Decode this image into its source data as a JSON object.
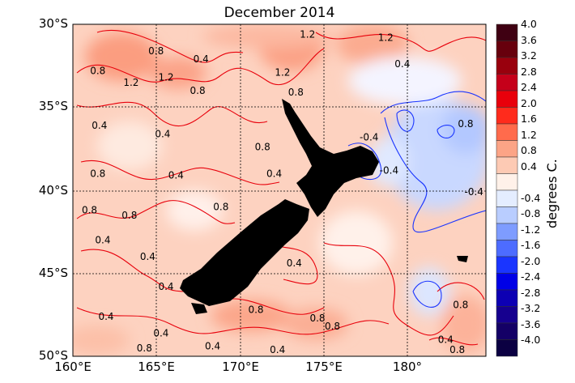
{
  "title": "December 2014",
  "lat_labels": [
    "30°S",
    "35°S",
    "40°S",
    "45°S",
    "50°S"
  ],
  "lon_labels": [
    "160°E",
    "165°E",
    "170°E",
    "175°E",
    "180°"
  ],
  "colorbar": {
    "label": "degrees C.",
    "tick_labels": [
      "4.0",
      "3.6",
      "3.2",
      "2.8",
      "2.4",
      "2.0",
      "1.6",
      "1.2",
      "0.8",
      "0.4",
      "-0.4",
      "-0.8",
      "-1.2",
      "-1.6",
      "-2.0",
      "-2.4",
      "-2.8",
      "-3.2",
      "-3.6",
      "-4.0"
    ],
    "colors": [
      "#3f0012",
      "#67000d",
      "#99000d",
      "#c5001a",
      "#e8000b",
      "#ff2b1c",
      "#ff6b4c",
      "#fca486",
      "#fdcab4",
      "#fff1e9",
      "#e4edff",
      "#b9cdff",
      "#7e9cff",
      "#4d6cff",
      "#1a35ff",
      "#0000e6",
      "#0d00b3",
      "#16008f",
      "#140066",
      "#0b0042"
    ]
  },
  "contour_labels": [
    {
      "t": "1.2",
      "lon": 174.0,
      "lat": 30.6
    },
    {
      "t": "1.2",
      "lon": 178.7,
      "lat": 30.8
    },
    {
      "t": "0.8",
      "lon": 164.9,
      "lat": 31.6
    },
    {
      "t": "0.4",
      "lon": 167.6,
      "lat": 32.1
    },
    {
      "t": "0.8",
      "lon": 161.4,
      "lat": 32.8
    },
    {
      "t": "0.4",
      "lon": 179.7,
      "lat": 32.4
    },
    {
      "t": "1.2",
      "lon": 163.4,
      "lat": 33.5
    },
    {
      "t": "1.2",
      "lon": 165.5,
      "lat": 33.2
    },
    {
      "t": "0.8",
      "lon": 167.4,
      "lat": 34.0
    },
    {
      "t": "1.2",
      "lon": 172.5,
      "lat": 32.9
    },
    {
      "t": "0.8",
      "lon": 173.3,
      "lat": 34.1
    },
    {
      "t": "0.4",
      "lon": 161.5,
      "lat": 36.1
    },
    {
      "t": "0.4",
      "lon": 165.3,
      "lat": 36.6
    },
    {
      "t": "-0.4",
      "lon": 177.7,
      "lat": 36.8
    },
    {
      "t": "0.8",
      "lon": 183.5,
      "lat": 36.0
    },
    {
      "t": "0.8",
      "lon": 171.3,
      "lat": 37.4
    },
    {
      "t": "0.8",
      "lon": 161.4,
      "lat": 39.0
    },
    {
      "t": "0.4",
      "lon": 166.1,
      "lat": 39.1
    },
    {
      "t": "0.4",
      "lon": 172.0,
      "lat": 39.0
    },
    {
      "t": "-0.4",
      "lon": 178.9,
      "lat": 38.8
    },
    {
      "t": "-0.4",
      "lon": 184.0,
      "lat": 40.1
    },
    {
      "t": "0.8",
      "lon": 160.9,
      "lat": 41.2
    },
    {
      "t": "0.8",
      "lon": 163.3,
      "lat": 41.5
    },
    {
      "t": "0.8",
      "lon": 168.8,
      "lat": 41.0
    },
    {
      "t": "0.4",
      "lon": 161.7,
      "lat": 43.0
    },
    {
      "t": "0.4",
      "lon": 164.4,
      "lat": 44.0
    },
    {
      "t": "0.4",
      "lon": 173.2,
      "lat": 44.4
    },
    {
      "t": "0.4",
      "lon": 165.5,
      "lat": 45.8
    },
    {
      "t": "0.8",
      "lon": 170.9,
      "lat": 47.2
    },
    {
      "t": "0.8",
      "lon": 174.6,
      "lat": 47.7
    },
    {
      "t": "0.8",
      "lon": 175.5,
      "lat": 48.2
    },
    {
      "t": "0.8",
      "lon": 183.2,
      "lat": 46.9
    },
    {
      "t": "0.4",
      "lon": 161.9,
      "lat": 47.6
    },
    {
      "t": "0.4",
      "lon": 165.2,
      "lat": 48.6
    },
    {
      "t": "0.4",
      "lon": 168.3,
      "lat": 49.4
    },
    {
      "t": "0.4",
      "lon": 172.2,
      "lat": 49.6
    },
    {
      "t": "0.8",
      "lon": 164.2,
      "lat": 49.5
    },
    {
      "t": "0.4",
      "lon": 182.3,
      "lat": 49.0
    },
    {
      "t": "0.8",
      "lon": 183.0,
      "lat": 49.6
    }
  ]
}
